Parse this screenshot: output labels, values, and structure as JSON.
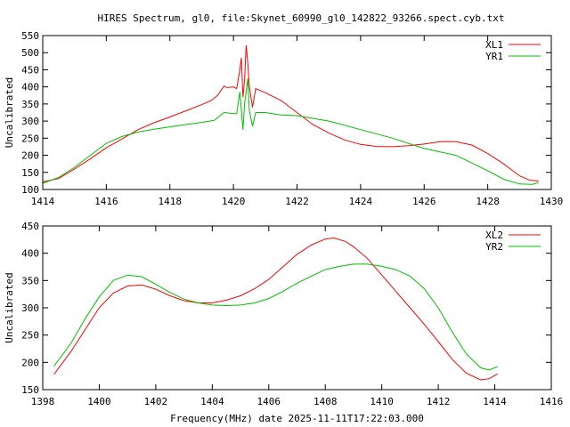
{
  "title": "HIRES Spectrum, gl0, file:Skynet_60990_gl0_142822_93266.spect.cyb.txt",
  "colors": {
    "XL": "#ff0000",
    "YR": "#00c000"
  },
  "chart_data": [
    {
      "type": "line",
      "xlabel": "",
      "ylabel": "Uncalibrated",
      "xlim": [
        1414,
        1430
      ],
      "ylim": [
        100,
        550
      ],
      "xticks": [
        1414,
        1416,
        1418,
        1420,
        1422,
        1424,
        1426,
        1428,
        1430
      ],
      "yticks": [
        100,
        150,
        200,
        250,
        300,
        350,
        400,
        450,
        500,
        550
      ],
      "legend": "top-right",
      "series": [
        {
          "name": "XL1",
          "color": "#ff0000",
          "points": [
            [
              1414,
              122
            ],
            [
              1414.5,
              132
            ],
            [
              1415,
              160
            ],
            [
              1415.5,
              190
            ],
            [
              1416,
              222
            ],
            [
              1416.5,
              248
            ],
            [
              1417,
              275
            ],
            [
              1417.5,
              295
            ],
            [
              1418,
              312
            ],
            [
              1418.5,
              330
            ],
            [
              1419,
              348
            ],
            [
              1419.3,
              360
            ],
            [
              1419.5,
              375
            ],
            [
              1419.7,
              402
            ],
            [
              1419.8,
              398
            ],
            [
              1420,
              400
            ],
            [
              1420.1,
              395
            ],
            [
              1420.2,
              450
            ],
            [
              1420.25,
              485
            ],
            [
              1420.3,
              370
            ],
            [
              1420.35,
              420
            ],
            [
              1420.4,
              522
            ],
            [
              1420.45,
              470
            ],
            [
              1420.5,
              400
            ],
            [
              1420.6,
              340
            ],
            [
              1420.7,
              395
            ],
            [
              1421,
              383
            ],
            [
              1421.5,
              360
            ],
            [
              1422,
              325
            ],
            [
              1422.5,
              290
            ],
            [
              1423,
              265
            ],
            [
              1423.5,
              245
            ],
            [
              1424,
              232
            ],
            [
              1424.5,
              226
            ],
            [
              1425,
              225
            ],
            [
              1425.5,
              228
            ],
            [
              1426,
              233
            ],
            [
              1426.5,
              240
            ],
            [
              1427,
              240
            ],
            [
              1427.5,
              230
            ],
            [
              1428,
              205
            ],
            [
              1428.5,
              175
            ],
            [
              1429,
              140
            ],
            [
              1429.3,
              128
            ],
            [
              1429.6,
              124
            ]
          ]
        },
        {
          "name": "YR1",
          "color": "#00c000",
          "points": [
            [
              1414,
              118
            ],
            [
              1414.5,
              135
            ],
            [
              1415,
              165
            ],
            [
              1415.5,
              200
            ],
            [
              1416,
              235
            ],
            [
              1416.5,
              255
            ],
            [
              1417,
              268
            ],
            [
              1417.5,
              276
            ],
            [
              1418,
              283
            ],
            [
              1418.5,
              290
            ],
            [
              1419,
              296
            ],
            [
              1419.4,
              302
            ],
            [
              1419.7,
              325
            ],
            [
              1420,
              322
            ],
            [
              1420.1,
              322
            ],
            [
              1420.2,
              385
            ],
            [
              1420.3,
              275
            ],
            [
              1420.35,
              350
            ],
            [
              1420.45,
              425
            ],
            [
              1420.5,
              330
            ],
            [
              1420.6,
              285
            ],
            [
              1420.7,
              325
            ],
            [
              1421,
              325
            ],
            [
              1421.5,
              318
            ],
            [
              1422,
              316
            ],
            [
              1423,
              300
            ],
            [
              1424,
              275
            ],
            [
              1425,
              250
            ],
            [
              1426,
              220
            ],
            [
              1427,
              200
            ],
            [
              1428,
              155
            ],
            [
              1428.5,
              130
            ],
            [
              1429,
              116
            ],
            [
              1429.4,
              115
            ],
            [
              1429.6,
              120
            ]
          ]
        }
      ]
    },
    {
      "type": "line",
      "xlabel": "Frequency(MHz) date 2025-11-11T17:22:03.000",
      "ylabel": "Uncalibrated",
      "xlim": [
        1398,
        1416
      ],
      "ylim": [
        150,
        450
      ],
      "xticks": [
        1398,
        1400,
        1402,
        1404,
        1406,
        1408,
        1410,
        1412,
        1414,
        1416
      ],
      "yticks": [
        150,
        200,
        250,
        300,
        350,
        400,
        450
      ],
      "legend": "top-right",
      "series": [
        {
          "name": "XL2",
          "color": "#ff0000",
          "points": [
            [
              1398.4,
              178
            ],
            [
              1399,
              220
            ],
            [
              1399.5,
              260
            ],
            [
              1400,
              300
            ],
            [
              1400.5,
              327
            ],
            [
              1401,
              340
            ],
            [
              1401.5,
              342
            ],
            [
              1402,
              334
            ],
            [
              1402.5,
              322
            ],
            [
              1403,
              313
            ],
            [
              1403.5,
              309
            ],
            [
              1404,
              309
            ],
            [
              1404.5,
              314
            ],
            [
              1405,
              322
            ],
            [
              1405.5,
              335
            ],
            [
              1406,
              352
            ],
            [
              1406.5,
              375
            ],
            [
              1407,
              398
            ],
            [
              1407.5,
              415
            ],
            [
              1408,
              426
            ],
            [
              1408.3,
              428
            ],
            [
              1408.7,
              422
            ],
            [
              1409,
              412
            ],
            [
              1409.5,
              390
            ],
            [
              1410,
              360
            ],
            [
              1410.5,
              330
            ],
            [
              1411,
              300
            ],
            [
              1411.5,
              270
            ],
            [
              1412,
              238
            ],
            [
              1412.5,
              205
            ],
            [
              1413,
              180
            ],
            [
              1413.5,
              168
            ],
            [
              1413.8,
              170
            ],
            [
              1414.1,
              179
            ]
          ]
        },
        {
          "name": "YR2",
          "color": "#00c000",
          "points": [
            [
              1398.4,
              193
            ],
            [
              1399,
              235
            ],
            [
              1399.5,
              280
            ],
            [
              1400,
              320
            ],
            [
              1400.5,
              350
            ],
            [
              1401,
              360
            ],
            [
              1401.5,
              357
            ],
            [
              1402,
              343
            ],
            [
              1402.5,
              328
            ],
            [
              1403,
              316
            ],
            [
              1403.5,
              309
            ],
            [
              1404,
              305
            ],
            [
              1404.5,
              304
            ],
            [
              1405,
              305
            ],
            [
              1405.5,
              309
            ],
            [
              1406,
              317
            ],
            [
              1406.5,
              330
            ],
            [
              1407,
              345
            ],
            [
              1407.5,
              358
            ],
            [
              1408,
              370
            ],
            [
              1408.5,
              376
            ],
            [
              1409,
              380
            ],
            [
              1409.5,
              380
            ],
            [
              1410,
              376
            ],
            [
              1410.5,
              370
            ],
            [
              1411,
              358
            ],
            [
              1411.5,
              335
            ],
            [
              1412,
              300
            ],
            [
              1412.5,
              255
            ],
            [
              1413,
              215
            ],
            [
              1413.5,
              190
            ],
            [
              1413.8,
              186
            ],
            [
              1414.1,
              192
            ]
          ]
        }
      ]
    }
  ]
}
